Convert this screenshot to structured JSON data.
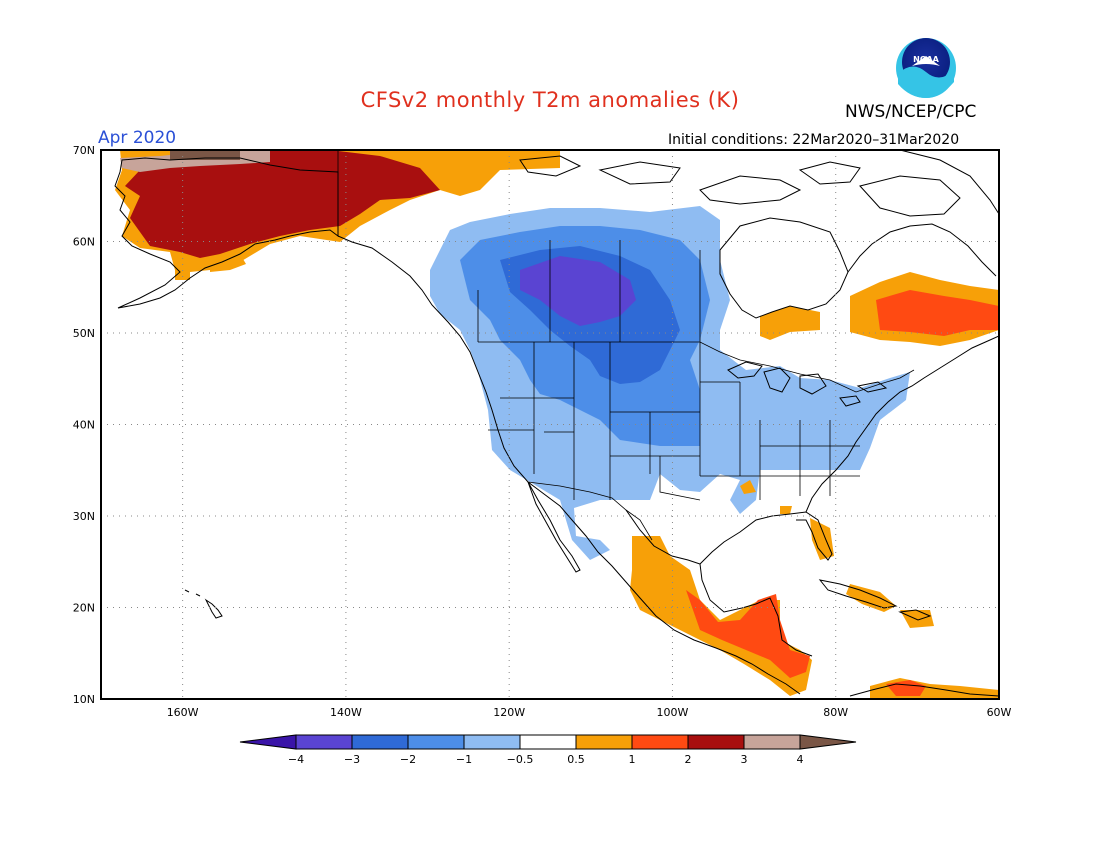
{
  "header": {
    "title": "CFSv2 monthly T2m anomalies (K)",
    "agency": "NWS/NCEP/CPC",
    "logo_text": "NOAA",
    "forecast_month": "Apr 2020",
    "initial_conditions": "Initial conditions: 22Mar2020–31Mar2020"
  },
  "map": {
    "lat_labels": [
      "70N",
      "60N",
      "50N",
      "40N",
      "30N",
      "20N",
      "10N"
    ],
    "lon_labels": [
      "160W",
      "140W",
      "120W",
      "100W",
      "80W",
      "60W"
    ],
    "extent": {
      "lon": [
        -170,
        -60
      ],
      "lat": [
        10,
        70
      ]
    },
    "gridlines": true
  },
  "colorbar": {
    "labels": [
      "−4",
      "−3",
      "−2",
      "−1",
      "−0.5",
      "0.5",
      "1",
      "2",
      "3",
      "4"
    ],
    "colors": [
      "#3a14a8",
      "#5a44d2",
      "#2f6ad6",
      "#4d8ee8",
      "#8fbcf2",
      "#ffffff",
      "#f7a008",
      "#ff4a12",
      "#a80f0f",
      "#c7a49a",
      "#7a5646"
    ]
  },
  "colors": {
    "title": "#e0301e",
    "month": "#2b50d6"
  }
}
